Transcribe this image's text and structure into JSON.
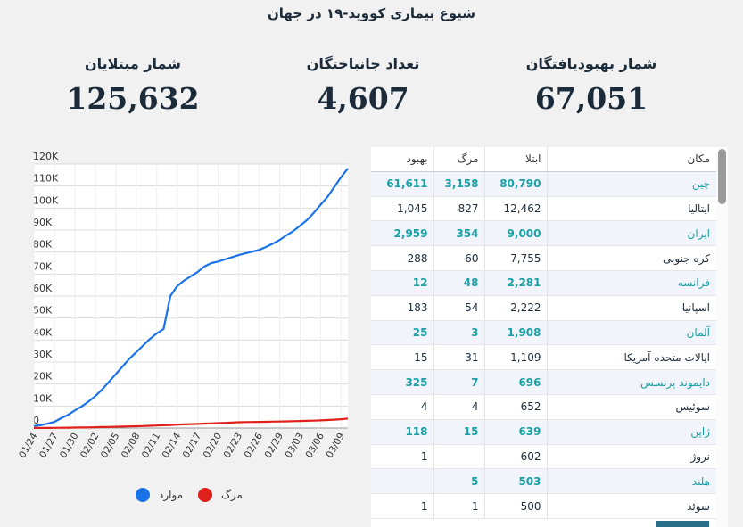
{
  "title": "شیوع بیماری کووید-۱۹ در جهان",
  "stats": {
    "recovered": {
      "label": "شمار بهبودیافتگان",
      "value": "67,051"
    },
    "deaths": {
      "label": "تعداد جانباختگان",
      "value": "4,607"
    },
    "infected": {
      "label": "شمار مبتلایان",
      "value": "125,632"
    }
  },
  "colors": {
    "cases": "#1a73e8",
    "deaths": "#e0201b",
    "accent": "#1aa0a6"
  },
  "table": {
    "headers": {
      "place": "مکان",
      "infected": "ابتلا",
      "deaths": "مرگ",
      "recovered": "بهبود"
    },
    "rows": [
      {
        "place": "چین",
        "infected": "80,790",
        "deaths": "3,158",
        "recovered": "61,611",
        "highlight": true
      },
      {
        "place": "ایتالیا",
        "infected": "12,462",
        "deaths": "827",
        "recovered": "1,045",
        "highlight": false
      },
      {
        "place": "ایران",
        "infected": "9,000",
        "deaths": "354",
        "recovered": "2,959",
        "highlight": true
      },
      {
        "place": "کره جنوبی",
        "infected": "7,755",
        "deaths": "60",
        "recovered": "288",
        "highlight": false
      },
      {
        "place": "فرانسه",
        "infected": "2,281",
        "deaths": "48",
        "recovered": "12",
        "highlight": true
      },
      {
        "place": "اسپانیا",
        "infected": "2,222",
        "deaths": "54",
        "recovered": "183",
        "highlight": false
      },
      {
        "place": "آلمان",
        "infected": "1,908",
        "deaths": "3",
        "recovered": "25",
        "highlight": true
      },
      {
        "place": "ایالات متحده آمریکا",
        "infected": "1,109",
        "deaths": "31",
        "recovered": "15",
        "highlight": false
      },
      {
        "place": "دایموند پرنسس",
        "infected": "696",
        "deaths": "7",
        "recovered": "325",
        "highlight": true
      },
      {
        "place": "سوئیس",
        "infected": "652",
        "deaths": "4",
        "recovered": "4",
        "highlight": false
      },
      {
        "place": "ژاپن",
        "infected": "639",
        "deaths": "15",
        "recovered": "118",
        "highlight": true
      },
      {
        "place": "نروژ",
        "infected": "602",
        "deaths": "",
        "recovered": "1",
        "highlight": false
      },
      {
        "place": "هلند",
        "infected": "503",
        "deaths": "5",
        "recovered": "",
        "highlight": true
      },
      {
        "place": "سوئد",
        "infected": "500",
        "deaths": "1",
        "recovered": "1",
        "highlight": false
      }
    ]
  },
  "chart_data": {
    "type": "line",
    "title": "",
    "xlabel": "",
    "ylabel": "",
    "ylim": [
      0,
      120000
    ],
    "yticks": [
      "0",
      "10K",
      "20K",
      "30K",
      "40K",
      "50K",
      "60K",
      "70K",
      "80K",
      "90K",
      "100K",
      "110K",
      "120K"
    ],
    "xticks": [
      "01/24",
      "01/27",
      "01/30",
      "02/02",
      "02/05",
      "02/08",
      "02/11",
      "02/14",
      "02/17",
      "02/20",
      "02/23",
      "02/26",
      "02/29",
      "03/03",
      "03/06",
      "03/09"
    ],
    "x": [
      "01/24",
      "01/25",
      "01/26",
      "01/27",
      "01/28",
      "01/29",
      "01/30",
      "01/31",
      "02/01",
      "02/02",
      "02/03",
      "02/04",
      "02/05",
      "02/06",
      "02/07",
      "02/08",
      "02/09",
      "02/10",
      "02/11",
      "02/12",
      "02/13",
      "02/14",
      "02/15",
      "02/16",
      "02/17",
      "02/18",
      "02/19",
      "02/20",
      "02/21",
      "02/22",
      "02/23",
      "02/24",
      "02/25",
      "02/26",
      "02/27",
      "02/28",
      "02/29",
      "03/01",
      "03/02",
      "03/03",
      "03/04",
      "03/05",
      "03/06",
      "03/07",
      "03/08",
      "03/09",
      "03/10"
    ],
    "series": [
      {
        "name": "موارد",
        "color": "#1a73e8",
        "values": [
          900,
          1300,
          2000,
          2800,
          4500,
          6000,
          8000,
          9800,
          12000,
          14500,
          17500,
          21000,
          24500,
          28000,
          31500,
          34500,
          37500,
          40500,
          43000,
          45000,
          60000,
          64500,
          67000,
          69000,
          71000,
          73500,
          75000,
          75700,
          76700,
          77600,
          78600,
          79400,
          80200,
          81000,
          82300,
          83800,
          85500,
          87600,
          89500,
          92000,
          94500,
          97800,
          101500,
          105000,
          109500,
          114000,
          118000
        ]
      },
      {
        "name": "مرگ",
        "color": "#e0201b",
        "values": [
          26,
          42,
          56,
          82,
          131,
          170,
          213,
          259,
          304,
          362,
          426,
          492,
          565,
          637,
          723,
          812,
          909,
          1017,
          1115,
          1261,
          1383,
          1527,
          1666,
          1772,
          1873,
          2009,
          2126,
          2247,
          2360,
          2460,
          2618,
          2699,
          2763,
          2800,
          2858,
          2923,
          2977,
          3050,
          3117,
          3202,
          3285,
          3384,
          3495,
          3651,
          3827,
          4000,
          4300
        ]
      }
    ],
    "legend": {
      "position": "bottom",
      "items": [
        "موارد",
        "مرگ"
      ]
    },
    "grid": true
  }
}
